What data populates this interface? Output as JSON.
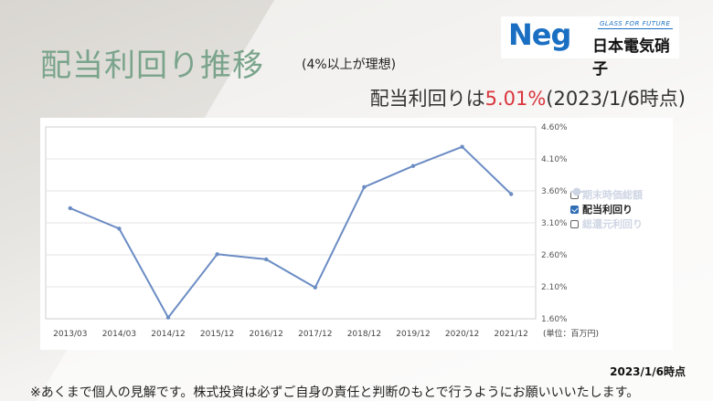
{
  "header": {
    "title": "配当利回り推移",
    "subtitle": "(4%以上が理想)",
    "yield_prefix": "配当利回りは",
    "yield_value": "5.01%",
    "yield_date": "(2023/1/6時点)"
  },
  "logo": {
    "brand": "Neg",
    "tagline": "GLASS FOR FUTURE",
    "company": "日本電気硝子"
  },
  "legend": {
    "items": [
      {
        "label": "期末時価総額",
        "checked": false
      },
      {
        "label": "配当利回り",
        "checked": true
      },
      {
        "label": "総還元利回り",
        "checked": false
      }
    ]
  },
  "chart_data": {
    "type": "line",
    "categories": [
      "2013/03",
      "2014/03",
      "2014/12",
      "2015/12",
      "2016/12",
      "2017/12",
      "2018/12",
      "2019/12",
      "2020/12",
      "2021/12"
    ],
    "series": [
      {
        "name": "配当利回り",
        "values": [
          3.33,
          3.01,
          1.62,
          2.61,
          2.53,
          2.09,
          3.66,
          3.99,
          4.29,
          3.55
        ]
      }
    ],
    "ylim": [
      1.6,
      4.6
    ],
    "yticks": [
      "1.60%",
      "2.10%",
      "2.60%",
      "3.10%",
      "3.60%",
      "4.10%",
      "4.60%"
    ],
    "unit_label": "(単位：百万円)",
    "grid": true,
    "line_color": "#6b8cc4"
  },
  "footer": {
    "date_note": "2023/1/6時点",
    "disclaimer": "※あくまで個人の見解です。株式投資は必ずご自身の責任と判断のもとで行うようにお願いいいたします。"
  }
}
